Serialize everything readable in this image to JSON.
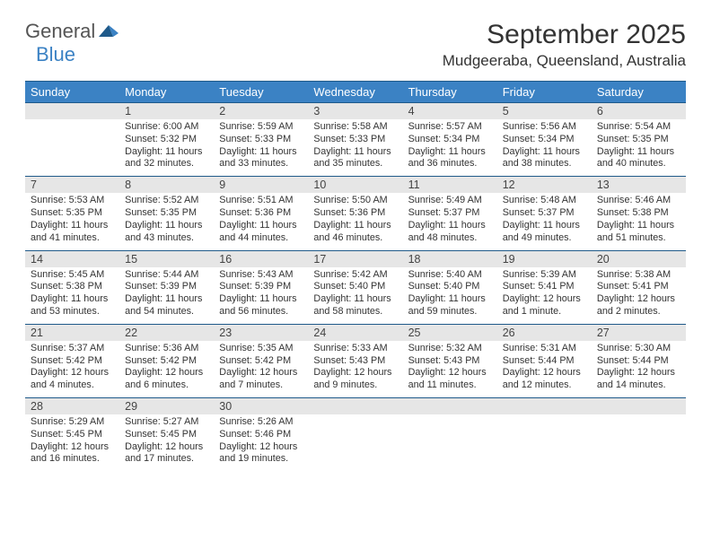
{
  "logo": {
    "text1": "General",
    "text2": "Blue"
  },
  "title": "September 2025",
  "location": "Mudgeeraba, Queensland, Australia",
  "colors": {
    "header_bg": "#3b82c4",
    "header_text": "#ffffff",
    "daynum_bg": "#e6e6e6",
    "border": "#1f5a8a",
    "body_text": "#333333",
    "logo_gray": "#555555",
    "logo_blue": "#3b82c4"
  },
  "day_names": [
    "Sunday",
    "Monday",
    "Tuesday",
    "Wednesday",
    "Thursday",
    "Friday",
    "Saturday"
  ],
  "weeks": [
    [
      {
        "n": "",
        "l1": "",
        "l2": "",
        "l3": "",
        "l4": ""
      },
      {
        "n": "1",
        "l1": "Sunrise: 6:00 AM",
        "l2": "Sunset: 5:32 PM",
        "l3": "Daylight: 11 hours",
        "l4": "and 32 minutes."
      },
      {
        "n": "2",
        "l1": "Sunrise: 5:59 AM",
        "l2": "Sunset: 5:33 PM",
        "l3": "Daylight: 11 hours",
        "l4": "and 33 minutes."
      },
      {
        "n": "3",
        "l1": "Sunrise: 5:58 AM",
        "l2": "Sunset: 5:33 PM",
        "l3": "Daylight: 11 hours",
        "l4": "and 35 minutes."
      },
      {
        "n": "4",
        "l1": "Sunrise: 5:57 AM",
        "l2": "Sunset: 5:34 PM",
        "l3": "Daylight: 11 hours",
        "l4": "and 36 minutes."
      },
      {
        "n": "5",
        "l1": "Sunrise: 5:56 AM",
        "l2": "Sunset: 5:34 PM",
        "l3": "Daylight: 11 hours",
        "l4": "and 38 minutes."
      },
      {
        "n": "6",
        "l1": "Sunrise: 5:54 AM",
        "l2": "Sunset: 5:35 PM",
        "l3": "Daylight: 11 hours",
        "l4": "and 40 minutes."
      }
    ],
    [
      {
        "n": "7",
        "l1": "Sunrise: 5:53 AM",
        "l2": "Sunset: 5:35 PM",
        "l3": "Daylight: 11 hours",
        "l4": "and 41 minutes."
      },
      {
        "n": "8",
        "l1": "Sunrise: 5:52 AM",
        "l2": "Sunset: 5:35 PM",
        "l3": "Daylight: 11 hours",
        "l4": "and 43 minutes."
      },
      {
        "n": "9",
        "l1": "Sunrise: 5:51 AM",
        "l2": "Sunset: 5:36 PM",
        "l3": "Daylight: 11 hours",
        "l4": "and 44 minutes."
      },
      {
        "n": "10",
        "l1": "Sunrise: 5:50 AM",
        "l2": "Sunset: 5:36 PM",
        "l3": "Daylight: 11 hours",
        "l4": "and 46 minutes."
      },
      {
        "n": "11",
        "l1": "Sunrise: 5:49 AM",
        "l2": "Sunset: 5:37 PM",
        "l3": "Daylight: 11 hours",
        "l4": "and 48 minutes."
      },
      {
        "n": "12",
        "l1": "Sunrise: 5:48 AM",
        "l2": "Sunset: 5:37 PM",
        "l3": "Daylight: 11 hours",
        "l4": "and 49 minutes."
      },
      {
        "n": "13",
        "l1": "Sunrise: 5:46 AM",
        "l2": "Sunset: 5:38 PM",
        "l3": "Daylight: 11 hours",
        "l4": "and 51 minutes."
      }
    ],
    [
      {
        "n": "14",
        "l1": "Sunrise: 5:45 AM",
        "l2": "Sunset: 5:38 PM",
        "l3": "Daylight: 11 hours",
        "l4": "and 53 minutes."
      },
      {
        "n": "15",
        "l1": "Sunrise: 5:44 AM",
        "l2": "Sunset: 5:39 PM",
        "l3": "Daylight: 11 hours",
        "l4": "and 54 minutes."
      },
      {
        "n": "16",
        "l1": "Sunrise: 5:43 AM",
        "l2": "Sunset: 5:39 PM",
        "l3": "Daylight: 11 hours",
        "l4": "and 56 minutes."
      },
      {
        "n": "17",
        "l1": "Sunrise: 5:42 AM",
        "l2": "Sunset: 5:40 PM",
        "l3": "Daylight: 11 hours",
        "l4": "and 58 minutes."
      },
      {
        "n": "18",
        "l1": "Sunrise: 5:40 AM",
        "l2": "Sunset: 5:40 PM",
        "l3": "Daylight: 11 hours",
        "l4": "and 59 minutes."
      },
      {
        "n": "19",
        "l1": "Sunrise: 5:39 AM",
        "l2": "Sunset: 5:41 PM",
        "l3": "Daylight: 12 hours",
        "l4": "and 1 minute."
      },
      {
        "n": "20",
        "l1": "Sunrise: 5:38 AM",
        "l2": "Sunset: 5:41 PM",
        "l3": "Daylight: 12 hours",
        "l4": "and 2 minutes."
      }
    ],
    [
      {
        "n": "21",
        "l1": "Sunrise: 5:37 AM",
        "l2": "Sunset: 5:42 PM",
        "l3": "Daylight: 12 hours",
        "l4": "and 4 minutes."
      },
      {
        "n": "22",
        "l1": "Sunrise: 5:36 AM",
        "l2": "Sunset: 5:42 PM",
        "l3": "Daylight: 12 hours",
        "l4": "and 6 minutes."
      },
      {
        "n": "23",
        "l1": "Sunrise: 5:35 AM",
        "l2": "Sunset: 5:42 PM",
        "l3": "Daylight: 12 hours",
        "l4": "and 7 minutes."
      },
      {
        "n": "24",
        "l1": "Sunrise: 5:33 AM",
        "l2": "Sunset: 5:43 PM",
        "l3": "Daylight: 12 hours",
        "l4": "and 9 minutes."
      },
      {
        "n": "25",
        "l1": "Sunrise: 5:32 AM",
        "l2": "Sunset: 5:43 PM",
        "l3": "Daylight: 12 hours",
        "l4": "and 11 minutes."
      },
      {
        "n": "26",
        "l1": "Sunrise: 5:31 AM",
        "l2": "Sunset: 5:44 PM",
        "l3": "Daylight: 12 hours",
        "l4": "and 12 minutes."
      },
      {
        "n": "27",
        "l1": "Sunrise: 5:30 AM",
        "l2": "Sunset: 5:44 PM",
        "l3": "Daylight: 12 hours",
        "l4": "and 14 minutes."
      }
    ],
    [
      {
        "n": "28",
        "l1": "Sunrise: 5:29 AM",
        "l2": "Sunset: 5:45 PM",
        "l3": "Daylight: 12 hours",
        "l4": "and 16 minutes."
      },
      {
        "n": "29",
        "l1": "Sunrise: 5:27 AM",
        "l2": "Sunset: 5:45 PM",
        "l3": "Daylight: 12 hours",
        "l4": "and 17 minutes."
      },
      {
        "n": "30",
        "l1": "Sunrise: 5:26 AM",
        "l2": "Sunset: 5:46 PM",
        "l3": "Daylight: 12 hours",
        "l4": "and 19 minutes."
      },
      {
        "n": "",
        "l1": "",
        "l2": "",
        "l3": "",
        "l4": ""
      },
      {
        "n": "",
        "l1": "",
        "l2": "",
        "l3": "",
        "l4": ""
      },
      {
        "n": "",
        "l1": "",
        "l2": "",
        "l3": "",
        "l4": ""
      },
      {
        "n": "",
        "l1": "",
        "l2": "",
        "l3": "",
        "l4": ""
      }
    ]
  ]
}
